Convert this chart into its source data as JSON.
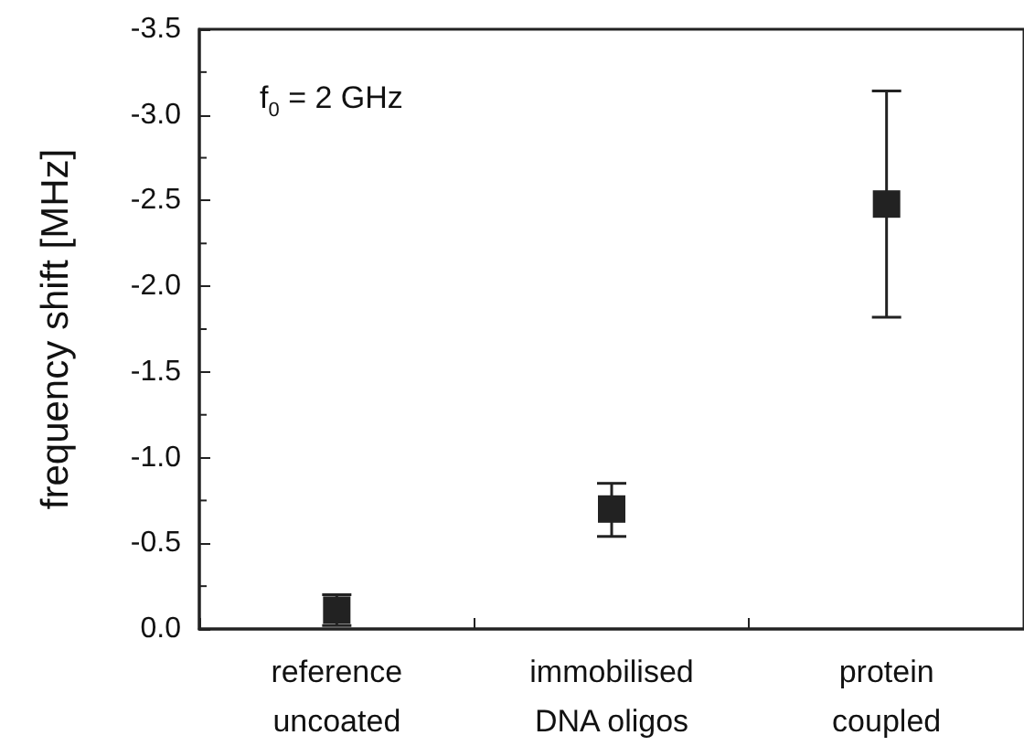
{
  "chart_data": {
    "type": "scatter",
    "ylabel": "frequency shift [MHz]",
    "categories": [
      "reference\nuncoated",
      "immobilised\nDNA oligos",
      "protein\ncoupled"
    ],
    "series": [
      {
        "color": "#222222",
        "values": [
          -0.11,
          -0.7,
          -2.48
        ],
        "errors": [
          [
            -0.2,
            -0.02
          ],
          [
            -0.85,
            -0.54
          ],
          [
            -3.14,
            -1.82
          ]
        ]
      }
    ],
    "marker": "square",
    "ylim": [
      0,
      -3.5
    ],
    "yticks": [
      {
        "value": 0,
        "label": "0.0"
      },
      {
        "value": -0.5,
        "label": "-0.5"
      },
      {
        "value": -1,
        "label": "-1.0"
      },
      {
        "value": -1.5,
        "label": "-1.5"
      },
      {
        "value": -2,
        "label": "-2.0"
      },
      {
        "value": -2.5,
        "label": "-2.5"
      },
      {
        "value": -3,
        "label": "-3.0"
      },
      {
        "value": -3.5,
        "label": "-3.5"
      }
    ],
    "annotations": [
      "f$_{0}$ = 2 GHz"
    ]
  }
}
